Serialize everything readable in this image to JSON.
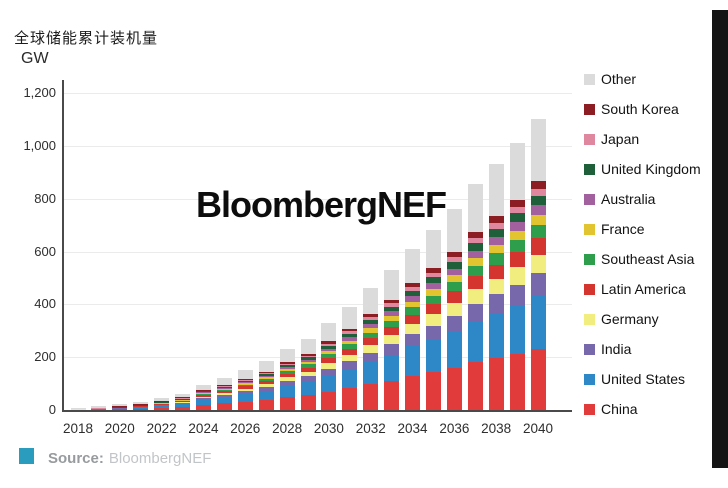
{
  "header": {
    "title": "全球储能累计装机量",
    "unit": "GW"
  },
  "watermark": "BloombergNEF",
  "source": {
    "label": "Source:",
    "value": "BloombergNEF",
    "icon_color": "#2a9cbe"
  },
  "chart_data": {
    "type": "bar",
    "stacked": true,
    "title": "全球储能累计装机量",
    "ylabel": "GW",
    "xlabel": "",
    "ylim": [
      0,
      1200
    ],
    "yticks": [
      0,
      200,
      400,
      600,
      800,
      1000,
      1200
    ],
    "ytick_labels": [
      "0",
      "200",
      "400",
      "600",
      "800",
      "1,000",
      "1,200"
    ],
    "x": [
      2018,
      2019,
      2020,
      2021,
      2022,
      2023,
      2024,
      2025,
      2026,
      2027,
      2028,
      2029,
      2030,
      2031,
      2032,
      2033,
      2034,
      2035,
      2036,
      2037,
      2038,
      2039,
      2040
    ],
    "xtick_labels": [
      "2018",
      "2020",
      "2022",
      "2024",
      "2026",
      "2028",
      "2030",
      "2032",
      "2034",
      "2036",
      "2038",
      "2040"
    ],
    "grid": true,
    "legend_position": "right",
    "totals_gw": [
      9,
      14,
      23,
      32,
      45,
      62,
      95,
      120,
      150,
      185,
      230,
      270,
      330,
      390,
      460,
      530,
      610,
      680,
      760,
      855,
      930,
      1010,
      1100
    ],
    "series": [
      {
        "name": "China",
        "color": "#e23b3c",
        "values": [
          0.5,
          0.9,
          2,
          4,
          7,
          11,
          20,
          25.2,
          31.5,
          38.9,
          48.3,
          56.7,
          69.3,
          81.9,
          96.6,
          111.3,
          128.1,
          142.8,
          159.6,
          179.6,
          195.3,
          212.1,
          231
        ]
      },
      {
        "name": "United States",
        "color": "#2e87c6",
        "values": [
          1,
          1.5,
          3,
          5.5,
          9,
          12.5,
          17.6,
          22.2,
          27.8,
          34.2,
          42.6,
          50,
          61.1,
          72.2,
          85.1,
          98.1,
          112.9,
          125.8,
          140.6,
          158.2,
          172.1,
          186.9,
          203.5
        ]
      },
      {
        "name": "India",
        "color": "#7668ab",
        "values": [
          0.1,
          0.2,
          0.5,
          1,
          1.8,
          3,
          7.1,
          9,
          11.3,
          13.9,
          17.3,
          20.3,
          24.8,
          29.3,
          34.5,
          39.8,
          45.8,
          51,
          57,
          64.1,
          69.8,
          75.8,
          82.5
        ]
      },
      {
        "name": "Germany",
        "color": "#f1ee7f",
        "values": [
          0.5,
          0.7,
          1,
          1.5,
          2.2,
          3.3,
          6.1,
          7.7,
          9.6,
          11.8,
          14.7,
          17.3,
          21.1,
          25,
          29.4,
          33.9,
          39,
          43.5,
          48.6,
          54.7,
          59.5,
          64.6,
          70.4
        ]
      },
      {
        "name": "Latin America",
        "color": "#d5352f",
        "values": [
          0.1,
          0.2,
          0.5,
          1,
          1.8,
          2.8,
          5.4,
          6.8,
          8.6,
          10.5,
          13.1,
          15.4,
          18.8,
          22.2,
          26.2,
          30.2,
          34.8,
          38.8,
          43.3,
          48.7,
          53,
          57.6,
          62.7
        ]
      },
      {
        "name": "Southeast Asia",
        "color": "#2f9e4c",
        "values": [
          0.1,
          0.2,
          0.5,
          1,
          1.6,
          2.4,
          4.4,
          5.5,
          6.9,
          8.5,
          10.6,
          12.4,
          15.2,
          17.9,
          21.2,
          24.4,
          28.1,
          31.3,
          35,
          39.3,
          42.8,
          46.5,
          50.6
        ]
      },
      {
        "name": "France",
        "color": "#e2c431",
        "values": [
          0.1,
          0.2,
          0.5,
          0.8,
          1.3,
          1.9,
          3.3,
          4.2,
          5.3,
          6.5,
          8.1,
          9.5,
          11.6,
          13.7,
          16.1,
          18.6,
          21.4,
          23.8,
          26.6,
          29.9,
          32.6,
          35.4,
          38.5
        ]
      },
      {
        "name": "Australia",
        "color": "#a2609f",
        "values": [
          0.3,
          0.5,
          1,
          1.4,
          1.9,
          2.5,
          3,
          3.8,
          4.8,
          5.9,
          7.4,
          8.6,
          10.6,
          12.5,
          14.7,
          17,
          19.5,
          21.8,
          24.3,
          27.4,
          29.8,
          32.3,
          35.2
        ]
      },
      {
        "name": "United Kingdom",
        "color": "#1f5f3a",
        "values": [
          0.5,
          0.8,
          1.2,
          1.8,
          2.4,
          3,
          3.2,
          4.1,
          5.1,
          6.3,
          7.8,
          9.2,
          11.2,
          13.3,
          15.6,
          18,
          20.7,
          23.1,
          25.8,
          29.1,
          31.6,
          34.3,
          37.4
        ]
      },
      {
        "name": "Japan",
        "color": "#e087a0",
        "values": [
          0.8,
          1,
          1.3,
          1.5,
          1.8,
          2.1,
          2.3,
          2.9,
          3.6,
          4.4,
          5.5,
          6.5,
          7.9,
          9.4,
          11,
          12.7,
          14.6,
          16.3,
          18.2,
          20.5,
          22.3,
          24.2,
          26.4
        ]
      },
      {
        "name": "South Korea",
        "color": "#8c1d23",
        "values": [
          1.5,
          2,
          2.5,
          3,
          3.2,
          3.5,
          3.6,
          3.7,
          4,
          4.8,
          6,
          7,
          8.6,
          10.1,
          12,
          13.8,
          15.9,
          17.7,
          19.8,
          22.2,
          24.2,
          26.3,
          28.6
        ]
      },
      {
        "name": "Other",
        "color": "#dbdbdb",
        "values": [
          3.5,
          5.8,
          9,
          9.5,
          11,
          14,
          19,
          24.9,
          31.5,
          39.3,
          48.6,
          57.1,
          69.8,
          82.5,
          97.6,
          112.2,
          129.2,
          144.1,
          161.2,
          181.3,
          197,
          214,
          233.2
        ]
      }
    ],
    "stack_note": "series listed bottom-to-top of each bar; legend displays reverse order (Other first, China last)"
  }
}
